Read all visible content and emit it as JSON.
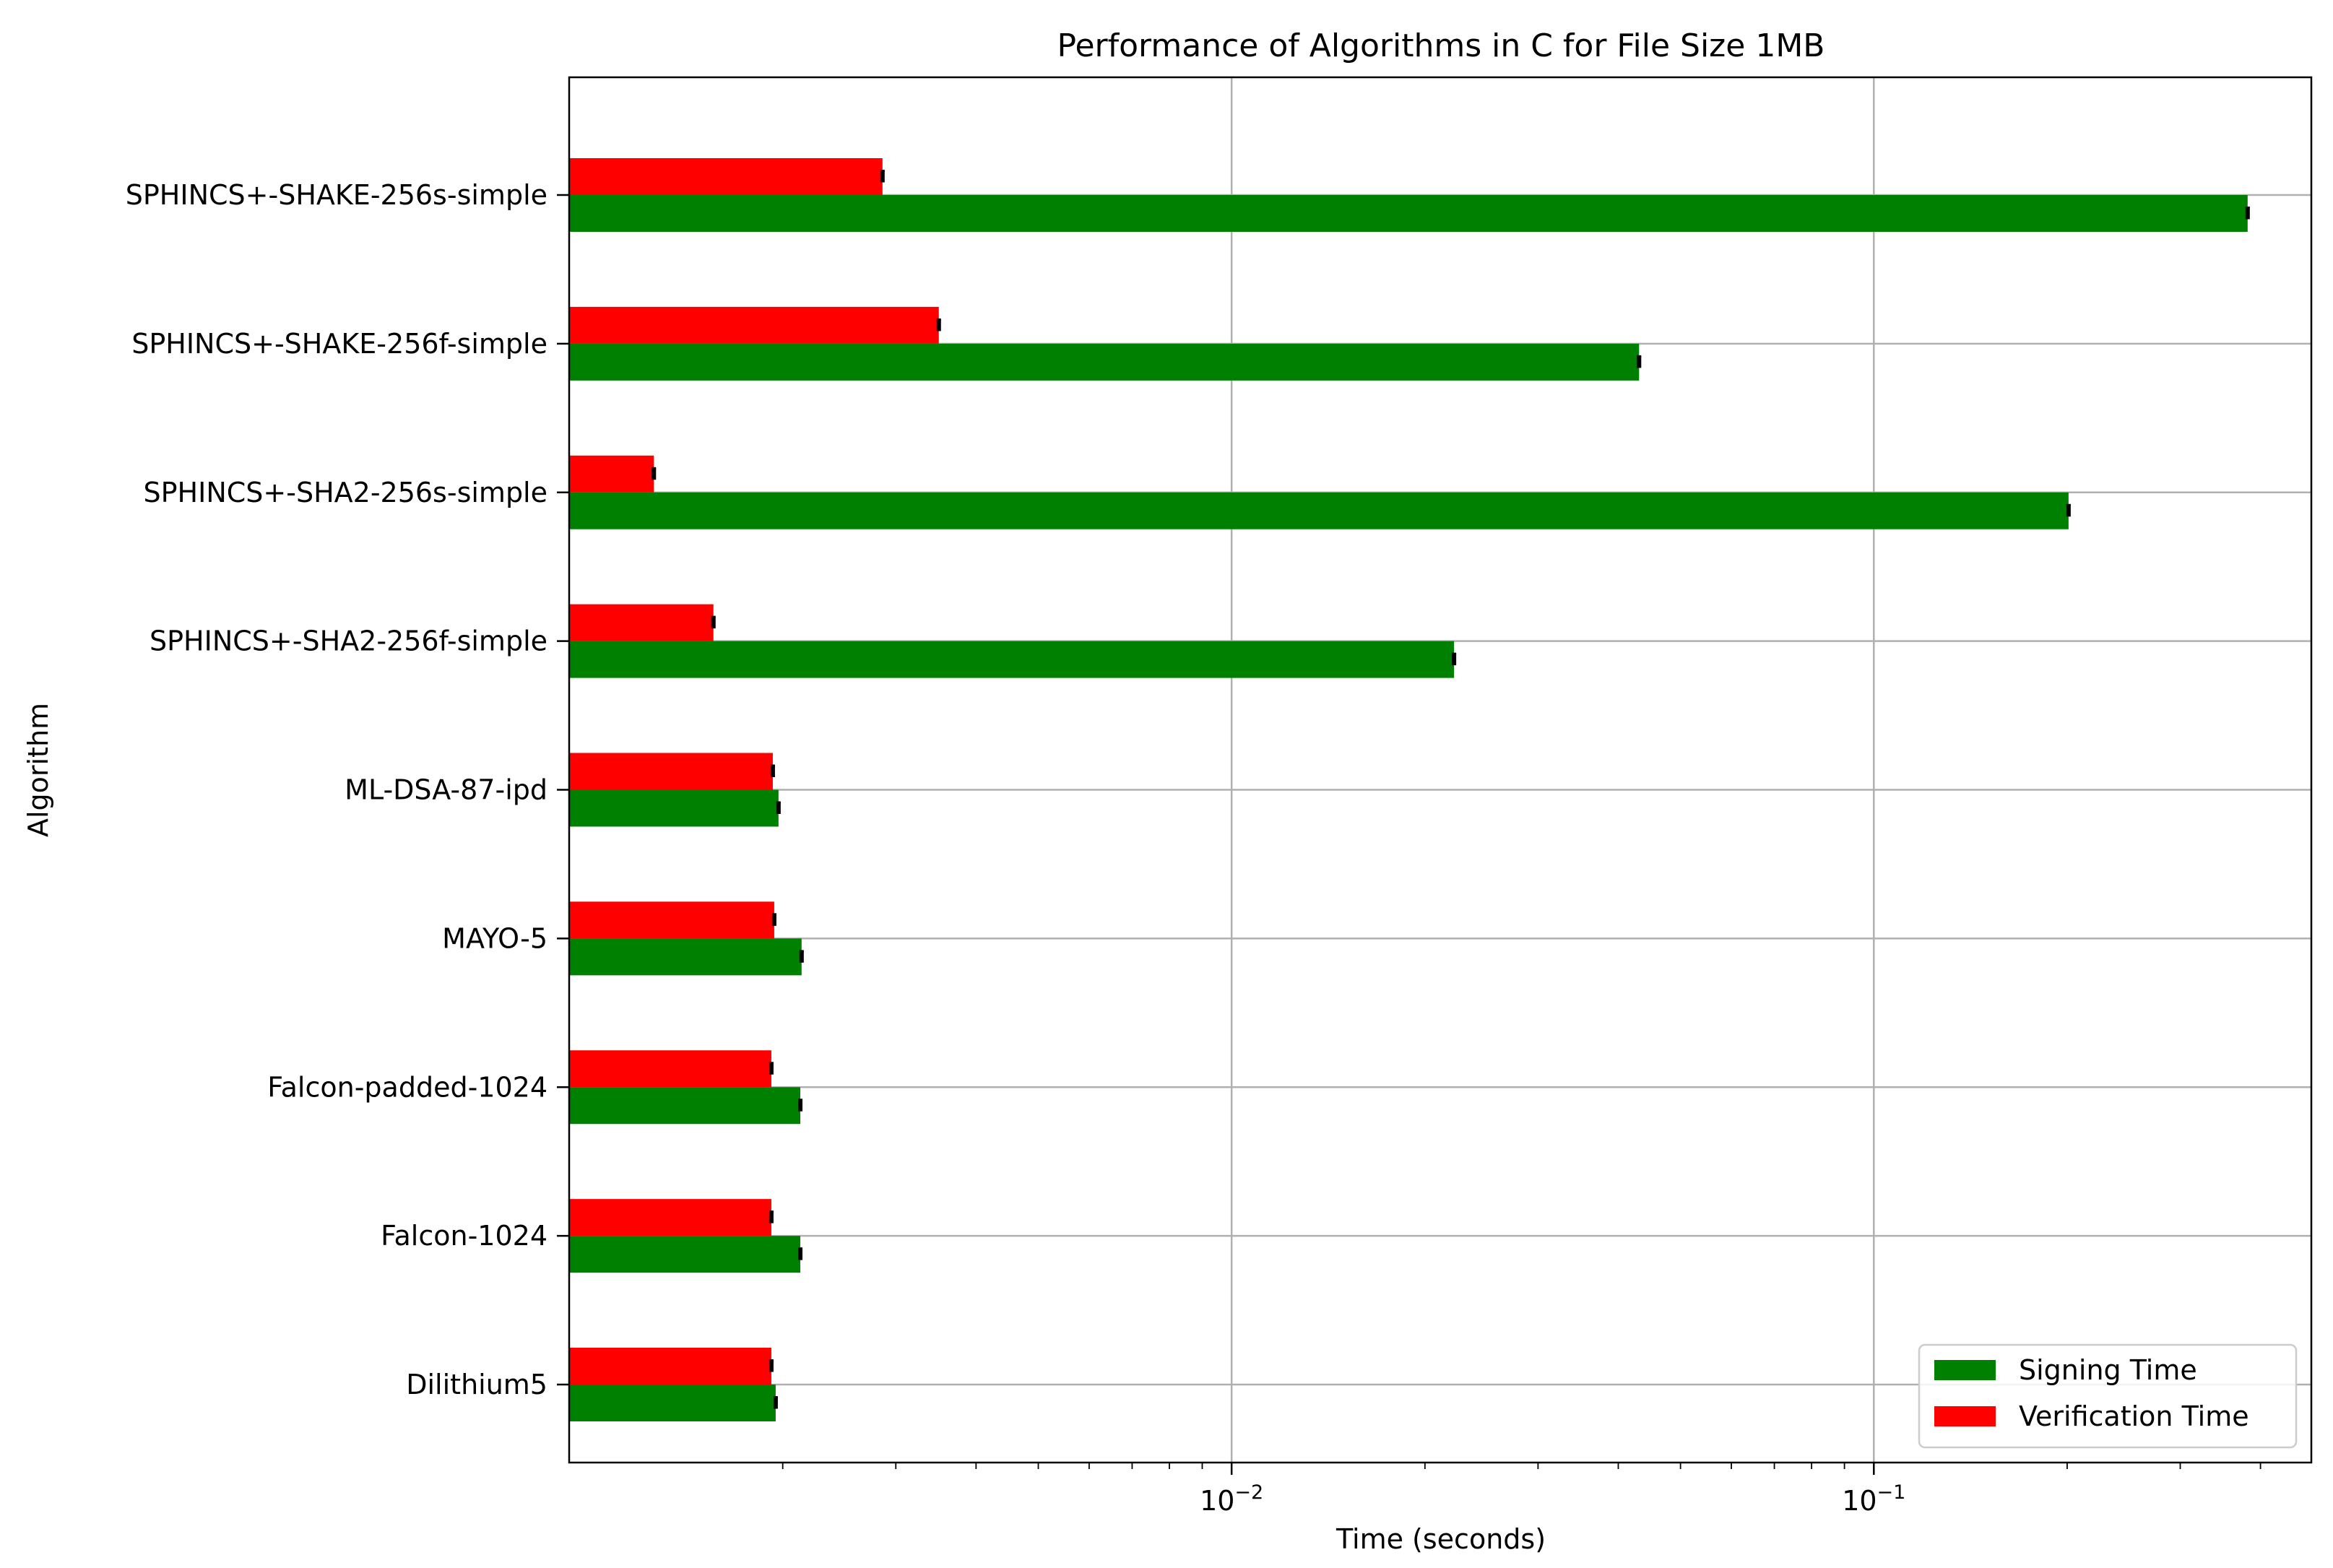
{
  "chart_data": {
    "type": "bar",
    "orientation": "horizontal",
    "title": "Performance of Algorithms in C for File Size 1MB",
    "xlabel": "Time (seconds)",
    "ylabel": "Algorithm",
    "x_scale": "log",
    "xlim": [
      0.00093,
      0.48
    ],
    "x_ticks": [
      {
        "value": 0.01,
        "base": "10",
        "exp": "−2"
      },
      {
        "value": 0.1,
        "base": "10",
        "exp": "−1"
      }
    ],
    "grid": true,
    "legend_position": "lower-right",
    "categories": [
      "Dilithium5",
      "Falcon-1024",
      "Falcon-padded-1024",
      "MAYO-5",
      "ML-DSA-87-ipd",
      "SPHINCS+-SHA2-256f-simple",
      "SPHINCS+-SHA2-256s-simple",
      "SPHINCS+-SHAKE-256f-simple",
      "SPHINCS+-SHAKE-256s-simple"
    ],
    "series": [
      {
        "name": "Signing Time",
        "color": "#008000",
        "values": [
          0.00195,
          0.00213,
          0.00213,
          0.00214,
          0.00197,
          0.0222,
          0.201,
          0.0431,
          0.382
        ]
      },
      {
        "name": "Verification Time",
        "color": "#ff0000",
        "values": [
          0.00192,
          0.00192,
          0.00192,
          0.00194,
          0.00193,
          0.00156,
          0.00126,
          0.0035,
          0.00286
        ]
      }
    ]
  }
}
